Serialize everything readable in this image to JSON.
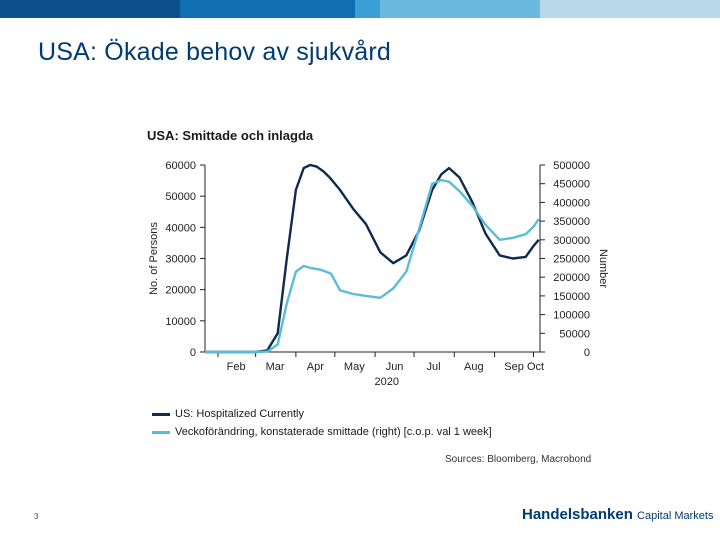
{
  "slide": {
    "title": "USA: Ökade behov av sjukvård",
    "page_number": "3",
    "brand": "Handelsbanken",
    "brand_suffix": "Capital Markets",
    "topbar_colors": [
      "#0d4f8c",
      "#0f6fb0",
      "#3a9fd4",
      "#6cb9e0",
      "#b7d9ea"
    ]
  },
  "chart_data": {
    "type": "line",
    "title": "USA: Smittade och inlagda",
    "ylabel": "No. of Persons",
    "y2label": "Number",
    "ylim": [
      0,
      60000
    ],
    "y2lim": [
      0,
      500000
    ],
    "yticks": [
      "60000",
      "50000",
      "40000",
      "30000",
      "20000",
      "10000",
      "0"
    ],
    "y2ticks": [
      "500000",
      "450000",
      "400000",
      "350000",
      "300000",
      "250000",
      "200000",
      "150000",
      "100000",
      "50000",
      "0"
    ],
    "xticks": [
      "Feb",
      "Mar",
      "Apr",
      "May",
      "Jun",
      "Jul",
      "Aug",
      "Sep",
      "Oct"
    ],
    "xlabel_year": "2020",
    "source": "Sources: Bloomberg, Macrobond",
    "series": [
      {
        "name": "US: Hospitalized Currently",
        "axis": "left",
        "color": "#0d2a4f",
        "x": [
          "2020-01-22",
          "2020-02-15",
          "2020-03-01",
          "2020-03-10",
          "2020-03-18",
          "2020-03-25",
          "2020-04-01",
          "2020-04-07",
          "2020-04-12",
          "2020-04-17",
          "2020-04-22",
          "2020-04-27",
          "2020-05-05",
          "2020-05-15",
          "2020-05-25",
          "2020-06-05",
          "2020-06-15",
          "2020-06-25",
          "2020-07-05",
          "2020-07-15",
          "2020-07-22",
          "2020-07-28",
          "2020-08-05",
          "2020-08-15",
          "2020-08-25",
          "2020-09-05",
          "2020-09-15",
          "2020-09-25",
          "2020-10-01",
          "2020-10-05"
        ],
        "values": [
          0,
          0,
          0,
          500,
          6000,
          30000,
          52000,
          59000,
          60000,
          59500,
          58000,
          56000,
          52000,
          46000,
          41000,
          32000,
          28500,
          31000,
          39000,
          52000,
          57000,
          59000,
          56000,
          48000,
          38000,
          31000,
          30000,
          30500,
          34000,
          36000
        ]
      },
      {
        "name": "Veckoförändring, konstaterade smittade (right) [c.o.p. val 1 week]",
        "axis": "right",
        "color": "#5bbcd9",
        "x": [
          "2020-01-22",
          "2020-02-15",
          "2020-03-01",
          "2020-03-10",
          "2020-03-18",
          "2020-03-25",
          "2020-04-01",
          "2020-04-07",
          "2020-04-12",
          "2020-04-20",
          "2020-04-28",
          "2020-05-05",
          "2020-05-15",
          "2020-05-25",
          "2020-06-05",
          "2020-06-15",
          "2020-06-25",
          "2020-07-05",
          "2020-07-15",
          "2020-07-22",
          "2020-07-28",
          "2020-08-05",
          "2020-08-15",
          "2020-08-25",
          "2020-09-05",
          "2020-09-15",
          "2020-09-25",
          "2020-10-01",
          "2020-10-05"
        ],
        "values": [
          0,
          0,
          0,
          1000,
          20000,
          130000,
          215000,
          230000,
          225000,
          220000,
          210000,
          165000,
          155000,
          150000,
          145000,
          170000,
          215000,
          330000,
          450000,
          460000,
          455000,
          430000,
          390000,
          340000,
          300000,
          305000,
          315000,
          335000,
          355000
        ]
      }
    ]
  }
}
